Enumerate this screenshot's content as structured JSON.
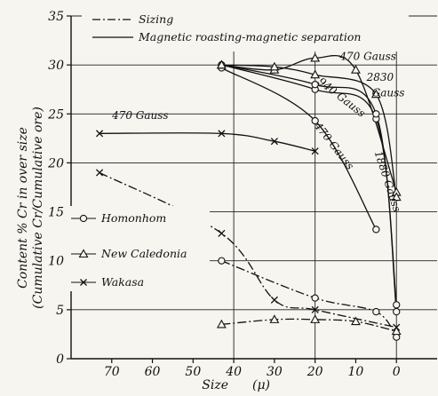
{
  "chart_data": {
    "type": "line",
    "xlabel": "Size",
    "xunit": "(μ)",
    "ylabel_line1": "Content % Cr in over size",
    "ylabel_line2": "(Cumulative Cr/Cumulative ore)",
    "xlim": [
      80,
      -10
    ],
    "ylim": [
      0,
      35
    ],
    "x_ticks": [
      70,
      60,
      50,
      40,
      30,
      20,
      10,
      0
    ],
    "y_ticks": [
      0,
      5,
      10,
      15,
      20,
      25,
      30,
      35
    ],
    "grid": true,
    "legend_lines": [
      {
        "style": "dashdot",
        "label": "Sizing"
      },
      {
        "style": "solid",
        "label": "Magnetic roasting-magnetic separation"
      }
    ],
    "legend_markers": [
      {
        "marker": "circle",
        "label": "Homonhom"
      },
      {
        "marker": "triangle",
        "label": "New Caledonia"
      },
      {
        "marker": "x",
        "label": "Wakasa"
      }
    ],
    "series": [
      {
        "ore": "Homonhom",
        "method": "sizing",
        "marker": "circle",
        "style": "dashdot",
        "x": [
          43,
          20,
          5,
          0
        ],
        "y": [
          10.0,
          6.2,
          4.8,
          2.2
        ]
      },
      {
        "ore": "New Caledonia",
        "method": "sizing",
        "marker": "triangle",
        "style": "dashdot",
        "x": [
          43,
          30,
          20,
          10,
          0
        ],
        "y": [
          3.5,
          4.0,
          4.0,
          3.8,
          2.8
        ]
      },
      {
        "ore": "Wakasa",
        "method": "sizing",
        "marker": "x",
        "style": "dashdot",
        "x": [
          73,
          43,
          30,
          20,
          0
        ],
        "y": [
          19.0,
          12.8,
          6.0,
          5.0,
          3.2
        ]
      },
      {
        "ore": "Wakasa",
        "method": "magnetic",
        "marker": "x",
        "style": "solid",
        "x": [
          73,
          43,
          30,
          20
        ],
        "y": [
          23.0,
          23.0,
          22.2,
          21.2
        ]
      },
      {
        "ore": "Homonhom",
        "method": "magnetic",
        "marker": "circle",
        "style": "solid",
        "x": [
          43,
          20,
          5
        ],
        "y": [
          29.7,
          24.3,
          13.2
        ]
      },
      {
        "ore": "Homonhom",
        "method": "magnetic",
        "marker": "circle",
        "style": "solid",
        "x": [
          43,
          20,
          5,
          0
        ],
        "y": [
          30.0,
          27.5,
          24.5,
          5.5
        ]
      },
      {
        "ore": "Homonhom",
        "method": "magnetic",
        "marker": "circle",
        "style": "solid",
        "x": [
          43,
          20,
          5,
          0
        ],
        "y": [
          30.0,
          28.0,
          25.0,
          4.8
        ]
      },
      {
        "ore": "New Caledonia",
        "method": "magnetic",
        "marker": "triangle",
        "style": "solid",
        "x": [
          43,
          30,
          20,
          10,
          0
        ],
        "y": [
          30.0,
          29.5,
          30.7,
          29.5,
          17.0
        ]
      },
      {
        "ore": "New Caledonia",
        "method": "magnetic",
        "marker": "triangle",
        "style": "solid",
        "x": [
          43,
          30,
          20,
          5,
          0
        ],
        "y": [
          30.0,
          29.8,
          29.0,
          27.0,
          16.5
        ]
      }
    ],
    "annotations": [
      {
        "text": "470 Gauss",
        "x": 63,
        "y": 24.5,
        "rotate": 0
      },
      {
        "text": "470 Gauss",
        "x": 7,
        "y": 30.5,
        "rotate": 0
      },
      {
        "text": "2830",
        "x": 4,
        "y": 28.4,
        "rotate": 0
      },
      {
        "text": "Gauss",
        "x": 2,
        "y": 26.8,
        "rotate": 0
      },
      {
        "text": "940 Gauss",
        "x": 14,
        "y": 26.4,
        "rotate": 38
      },
      {
        "text": "470 Gauss",
        "x": 16,
        "y": 21.5,
        "rotate": 52
      },
      {
        "text": "1880 Gauss",
        "x": 3,
        "y": 18.0,
        "rotate": 72
      }
    ]
  }
}
